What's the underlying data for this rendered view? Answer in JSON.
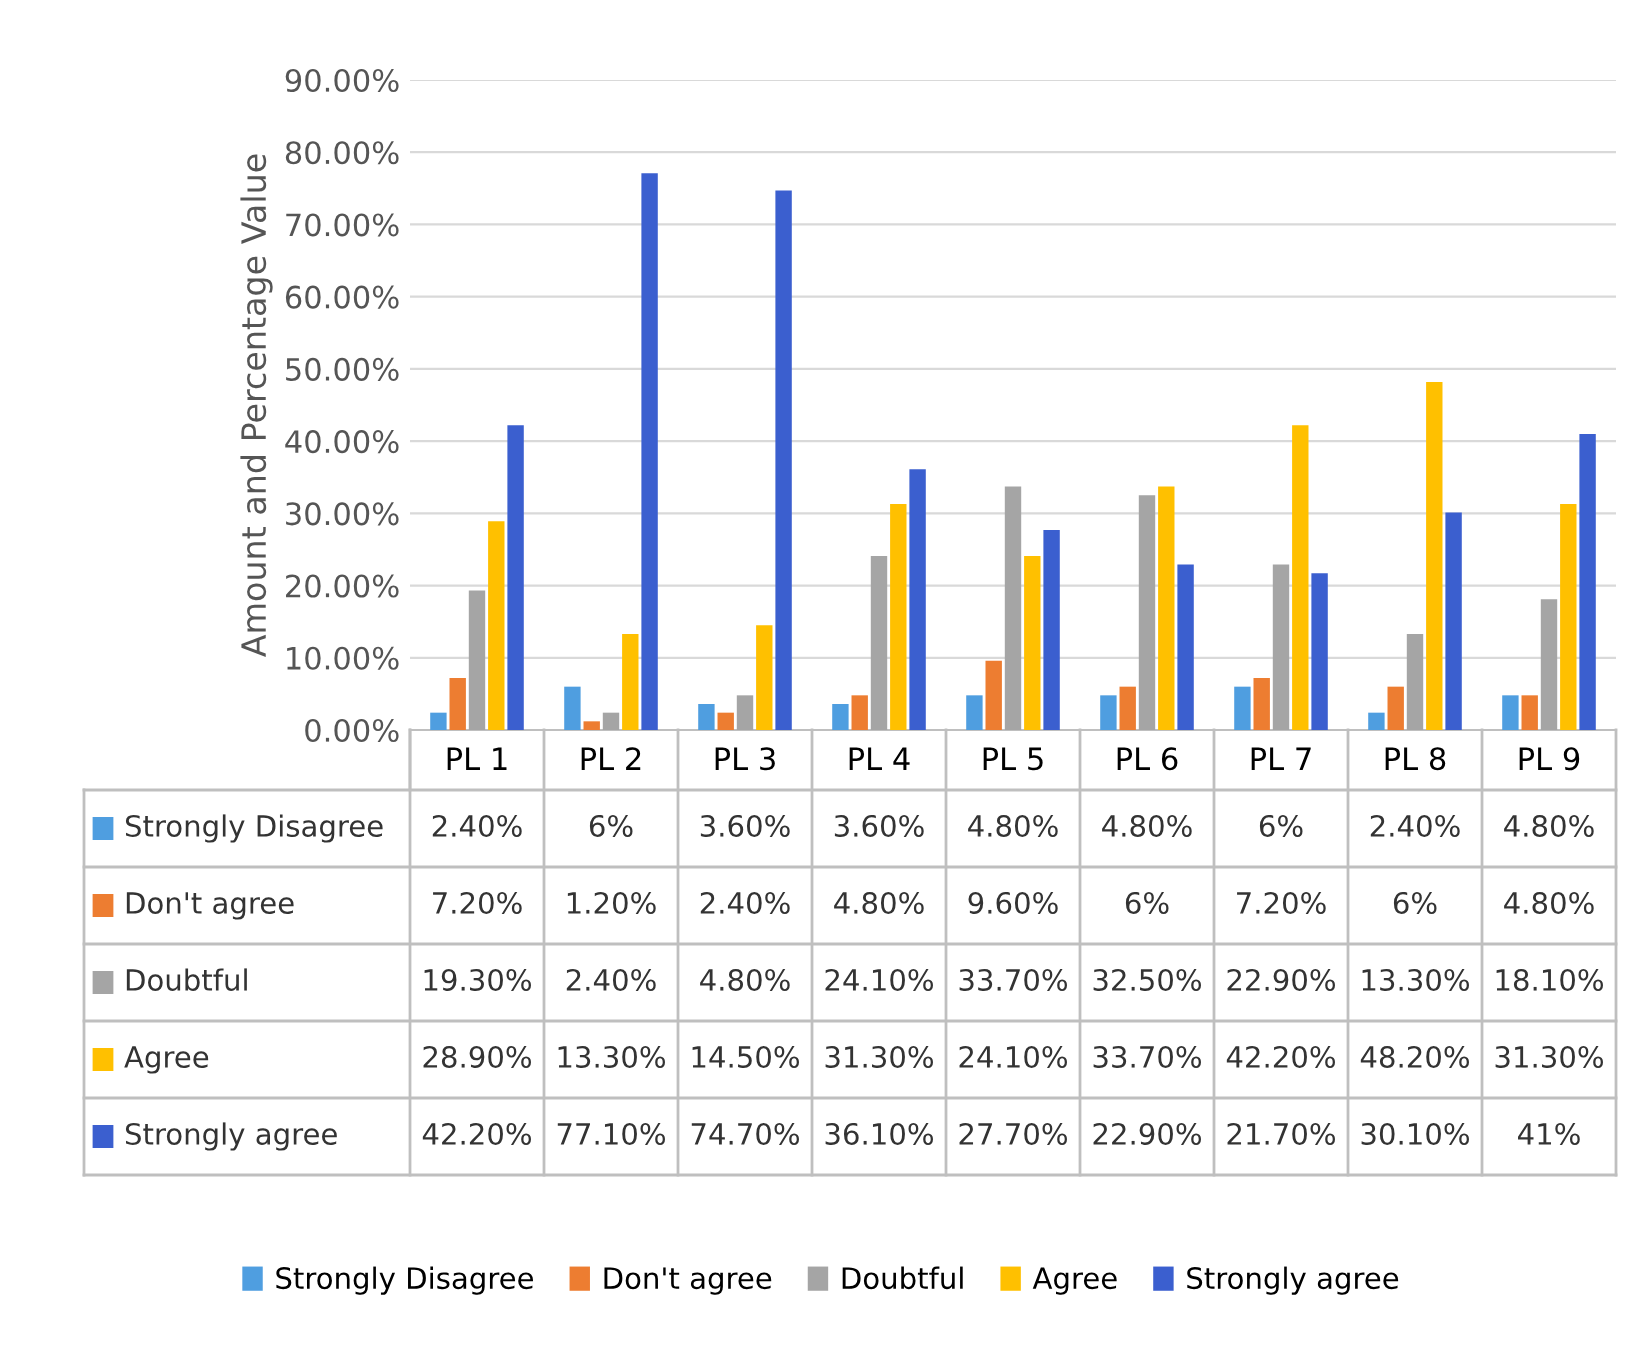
{
  "chart_data": {
    "type": "bar",
    "ylabel": "Amount and Percentage Value",
    "categories": [
      "PL 1",
      "PL 2",
      "PL 3",
      "PL 4",
      "PL 5",
      "PL 6",
      "PL 7",
      "PL 8",
      "PL 9"
    ],
    "series": [
      {
        "name": "Strongly Disagree",
        "color": "#4f9ee0",
        "values": [
          2.4,
          6,
          3.6,
          3.6,
          4.8,
          4.8,
          6,
          2.4,
          4.8
        ],
        "value_labels": [
          "2.40%",
          "6%",
          "3.60%",
          "3.60%",
          "4.80%",
          "4.80%",
          "6%",
          "2.40%",
          "4.80%"
        ]
      },
      {
        "name": "Don't agree",
        "color": "#ed7d31",
        "values": [
          7.2,
          1.2,
          2.4,
          4.8,
          9.6,
          6,
          7.2,
          6,
          4.8
        ],
        "value_labels": [
          "7.20%",
          "1.20%",
          "2.40%",
          "4.80%",
          "9.60%",
          "6%",
          "7.20%",
          "6%",
          "4.80%"
        ]
      },
      {
        "name": "Doubtful",
        "color": "#a5a5a5",
        "values": [
          19.3,
          2.4,
          4.8,
          24.1,
          33.7,
          32.5,
          22.9,
          13.3,
          18.1
        ],
        "value_labels": [
          "19.30%",
          "2.40%",
          "4.80%",
          "24.10%",
          "33.70%",
          "32.50%",
          "22.90%",
          "13.30%",
          "18.10%"
        ]
      },
      {
        "name": "Agree",
        "color": "#ffc000",
        "values": [
          28.9,
          13.3,
          14.5,
          31.3,
          24.1,
          33.7,
          42.2,
          48.2,
          31.3
        ],
        "value_labels": [
          "28.90%",
          "13.30%",
          "14.50%",
          "31.30%",
          "24.10%",
          "33.70%",
          "42.20%",
          "48.20%",
          "31.30%"
        ]
      },
      {
        "name": "Strongly agree",
        "color": "#3b5fcf",
        "values": [
          42.2,
          77.1,
          74.7,
          36.1,
          27.7,
          22.9,
          21.7,
          30.1,
          41
        ],
        "value_labels": [
          "42.20%",
          "77.10%",
          "74.70%",
          "36.10%",
          "27.70%",
          "22.90%",
          "21.70%",
          "30.10%",
          "41%"
        ]
      }
    ],
    "ylim": [
      0,
      90
    ],
    "yticks": [
      {
        "value": 0,
        "label": "0.00%"
      },
      {
        "value": 10,
        "label": "10.00%"
      },
      {
        "value": 20,
        "label": "20.00%"
      },
      {
        "value": 30,
        "label": "30.00%"
      },
      {
        "value": 40,
        "label": "40.00%"
      },
      {
        "value": 50,
        "label": "50.00%"
      },
      {
        "value": 60,
        "label": "60.00%"
      },
      {
        "value": 70,
        "label": "70.00%"
      },
      {
        "value": 80,
        "label": "80.00%"
      },
      {
        "value": 90,
        "label": "90.00%"
      }
    ],
    "grid": "y",
    "legend": "bottom"
  }
}
